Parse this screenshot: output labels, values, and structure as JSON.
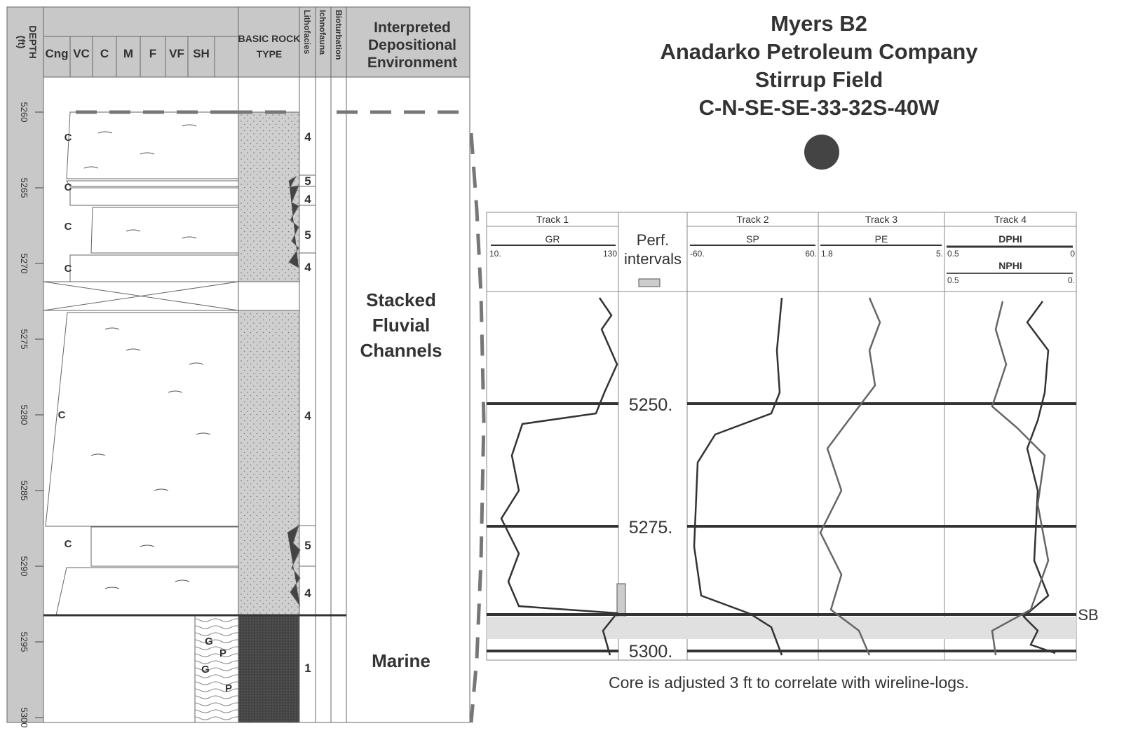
{
  "header": {
    "title_lines": [
      "Myers B2",
      "Anadarko Petroleum Company",
      "Stirrup Field",
      "C-N-SE-SE-33-32S-40W"
    ]
  },
  "core": {
    "depth_title": "DEPTH",
    "depth_unit": "(ft)",
    "grain_sizes": [
      "Cng",
      "VC",
      "C",
      "M",
      "F",
      "VF",
      "SH"
    ],
    "rock_type_lines": [
      "BASIC ROCK",
      "TYPE"
    ],
    "columns": [
      "Lithofacies",
      "Ichnofauna",
      "Bioturbation"
    ],
    "environment_title_lines": [
      "Interpreted",
      "Depositional",
      "Environment"
    ],
    "depths": [
      5260,
      5265,
      5270,
      5275,
      5280,
      5285,
      5290,
      5295,
      5300
    ],
    "lithofacies": [
      "4",
      "5",
      "4",
      "5",
      "4",
      "4",
      "5",
      "4",
      "1"
    ],
    "grain_labels": [
      "C",
      "C",
      "C",
      "C",
      "C",
      "C",
      "G",
      "P",
      "G",
      "P"
    ],
    "environments": [
      [
        "Stacked",
        "Fluvial",
        "Channels"
      ],
      [
        "Marine"
      ]
    ]
  },
  "logs": {
    "tracks": [
      {
        "name": "Track 1",
        "curves": [
          {
            "name": "GR",
            "left": "10.",
            "right": "130"
          }
        ]
      },
      {
        "name": "Track 2",
        "curves": [
          {
            "name": "SP",
            "left": "-60.",
            "right": "60."
          }
        ]
      },
      {
        "name": "Track 3",
        "curves": [
          {
            "name": "PE",
            "left": "1.8",
            "right": "5."
          }
        ]
      },
      {
        "name": "Track 4",
        "curves": [
          {
            "name": "DPHI",
            "left": "0.5",
            "right": "0"
          },
          {
            "name": "NPHI",
            "left": "0.5",
            "right": "0."
          }
        ]
      }
    ],
    "perf_lines": [
      "Perf.",
      "intervals"
    ],
    "depth_marks": [
      "5250.",
      "5275.",
      "5300."
    ],
    "boundary": "SB"
  },
  "caption": "Core is adjusted 3 ft to correlate with wireline-logs."
}
